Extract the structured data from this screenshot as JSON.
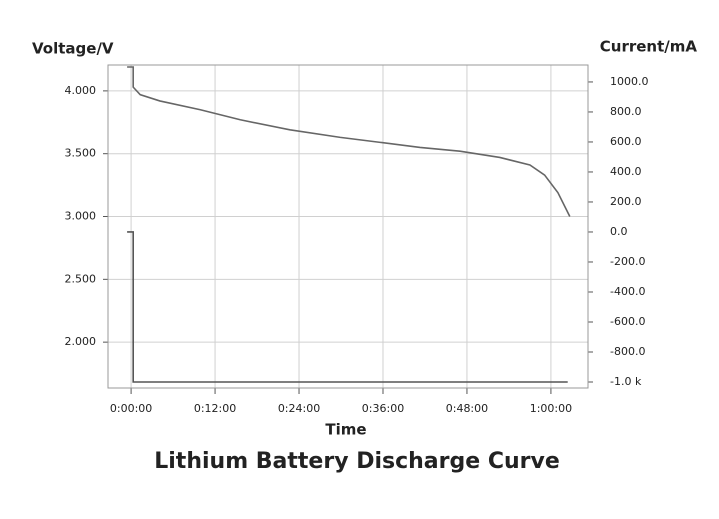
{
  "chart_data": {
    "type": "line",
    "title": "Lithium Battery Discharge Curve",
    "x_label": "Time",
    "y_label": "Voltage/V",
    "y2_label": "Current/mA",
    "xlim": [
      -3.3,
      65.3
    ],
    "xticks": [
      {
        "value": 0,
        "label": "0:00:00"
      },
      {
        "value": 12,
        "label": "0:12:00"
      },
      {
        "value": 24,
        "label": "0:24:00"
      },
      {
        "value": 36,
        "label": "0:36:00"
      },
      {
        "value": 48,
        "label": "0:48:00"
      },
      {
        "value": 60,
        "label": "1:00:00"
      }
    ],
    "ylim": [
      1.635,
      4.206
    ],
    "yticks": [
      {
        "value": 2,
        "label": "2.000"
      },
      {
        "value": 2.5,
        "label": "2.500"
      },
      {
        "value": 3,
        "label": "3.000"
      },
      {
        "value": 3.5,
        "label": "3.500"
      },
      {
        "value": 4,
        "label": "4.000"
      }
    ],
    "y2lim": [
      -1040,
      1113
    ],
    "y2ticks": [
      {
        "value": -1000,
        "label": "-1.0 k"
      },
      {
        "value": -800,
        "label": "-800.0"
      },
      {
        "value": -600,
        "label": "-600.0"
      },
      {
        "value": -400,
        "label": "-400.0"
      },
      {
        "value": -200,
        "label": "-200.0"
      },
      {
        "value": 0,
        "label": "0.0"
      },
      {
        "value": 200,
        "label": "200.0"
      },
      {
        "value": 400,
        "label": "400.0"
      },
      {
        "value": 600,
        "label": "600.0"
      },
      {
        "value": 800,
        "label": "800.0"
      },
      {
        "value": 1000,
        "label": "1000.0"
      }
    ],
    "grid": true,
    "series": [
      {
        "color": "#666666",
        "x": [
          -0.57,
          0.3,
          0.3,
          1.3,
          4.1,
          9.9,
          15.6,
          22.7,
          29.9,
          35.6,
          41.3,
          47,
          52.7,
          57,
          59.1,
          61,
          62.7
        ],
        "values": [
          4.19,
          4.19,
          4.03,
          3.97,
          3.92,
          3.85,
          3.77,
          3.69,
          3.63,
          3.59,
          3.55,
          3.52,
          3.47,
          3.41,
          3.33,
          3.19,
          3.0
        ]
      },
      {
        "color": "#555555",
        "axis": "y2",
        "x": [
          -0.57,
          0.3,
          0.3,
          62.4
        ],
        "values": [
          0,
          0,
          -1000,
          -1000
        ]
      }
    ]
  }
}
